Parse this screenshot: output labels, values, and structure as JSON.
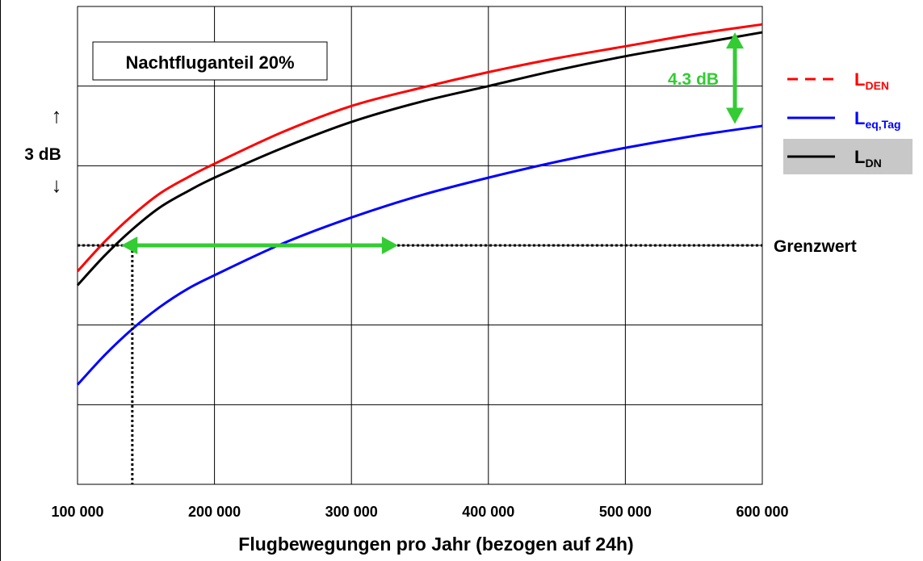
{
  "chart_data": {
    "type": "line",
    "annotation_box": "Nachtfluganteil 20%",
    "xlabel": "Flugbewegungen pro Jahr (bezogen auf 24h)",
    "ylabel": "",
    "xlim": [
      100000,
      600000
    ],
    "ylim": [
      -6,
      6
    ],
    "y_grid_step": 2,
    "grid": true,
    "x_ticks": [
      100000,
      200000,
      300000,
      400000,
      500000,
      600000
    ],
    "x_tick_labels": [
      "100 000",
      "200 000",
      "300 000",
      "400 000",
      "500 000",
      "600 000"
    ],
    "scale_indicator": {
      "label": "3 dB",
      "up_arrow": "↑",
      "down_arrow": "↓"
    },
    "legend_position": "right",
    "legend": [
      {
        "main": "L",
        "sub": "DEN",
        "color": "#ff0000",
        "dashed": true,
        "highlight": false
      },
      {
        "main": "L",
        "sub": "eq,Tag",
        "color": "#0000ff",
        "dashed": false,
        "highlight": false
      },
      {
        "main": "L",
        "sub": "DN",
        "color": "#000000",
        "dashed": false,
        "highlight": true
      }
    ],
    "series": [
      {
        "key": "DEN",
        "color": "#ff0000",
        "x": [
          100000,
          120000,
          140000,
          160000,
          180000,
          200000,
          250000,
          300000,
          350000,
          400000,
          450000,
          500000,
          550000,
          600000
        ],
        "y": [
          -0.65,
          0.1,
          0.75,
          1.3,
          1.7,
          2.05,
          2.85,
          3.5,
          3.95,
          4.35,
          4.7,
          5.0,
          5.3,
          5.55
        ]
      },
      {
        "key": "DN",
        "color": "#000000",
        "x": [
          100000,
          120000,
          140000,
          160000,
          180000,
          200000,
          250000,
          300000,
          350000,
          400000,
          450000,
          500000,
          550000,
          600000
        ],
        "y": [
          -1.0,
          -0.25,
          0.4,
          0.95,
          1.35,
          1.7,
          2.45,
          3.1,
          3.6,
          4.0,
          4.4,
          4.75,
          5.05,
          5.35
        ]
      },
      {
        "key": "Leq,Tag",
        "color": "#0000ff",
        "x": [
          100000,
          120000,
          140000,
          160000,
          180000,
          200000,
          250000,
          300000,
          350000,
          400000,
          450000,
          500000,
          550000,
          600000
        ],
        "y": [
          -3.5,
          -2.75,
          -2.1,
          -1.55,
          -1.1,
          -0.75,
          0.05,
          0.7,
          1.25,
          1.7,
          2.1,
          2.45,
          2.75,
          3.0
        ]
      }
    ],
    "threshold": {
      "label": "Grenzwert",
      "y": 0.0,
      "drop_x": 140000
    },
    "horizontal_arrow": {
      "x_from": 132000,
      "x_to": 334000,
      "y": 0.0,
      "color": "#33cc33"
    },
    "vertical_arrow": {
      "x": 580000,
      "y_from": 5.35,
      "y_to": 3.05,
      "label": "4.3 dB",
      "color": "#33cc33"
    }
  }
}
